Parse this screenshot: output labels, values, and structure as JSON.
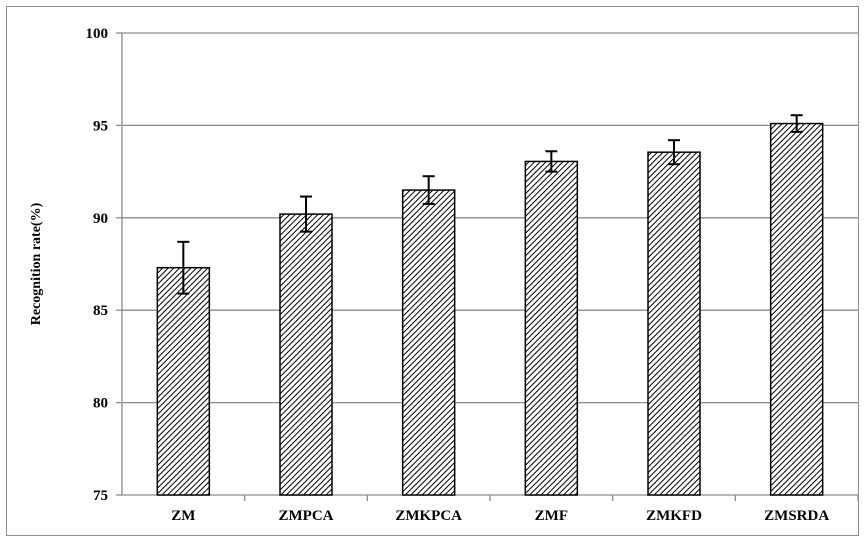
{
  "chart_data": {
    "type": "bar",
    "categories": [
      "ZM",
      "ZMPCA",
      "ZMKPCA",
      "ZMF",
      "ZMKFD",
      "ZMSRDA"
    ],
    "values": [
      87.3,
      90.2,
      91.5,
      93.05,
      93.55,
      95.1
    ],
    "error_low": [
      1.4,
      0.95,
      0.75,
      0.55,
      0.65,
      0.45
    ],
    "error_high": [
      1.4,
      0.95,
      0.75,
      0.55,
      0.65,
      0.45
    ],
    "ylabel": "Recognition rate(%)",
    "xlabel": "",
    "ylim": [
      75,
      100
    ],
    "yticks": [
      "75",
      "80",
      "85",
      "90",
      "95",
      "100"
    ],
    "grid": true,
    "bar_fill": "diagonal-hatch",
    "colors": {
      "bar_stroke": "#000000",
      "hatch": "#000000",
      "grid": "#8c8c8c",
      "frame": "#8c8c8c"
    }
  }
}
